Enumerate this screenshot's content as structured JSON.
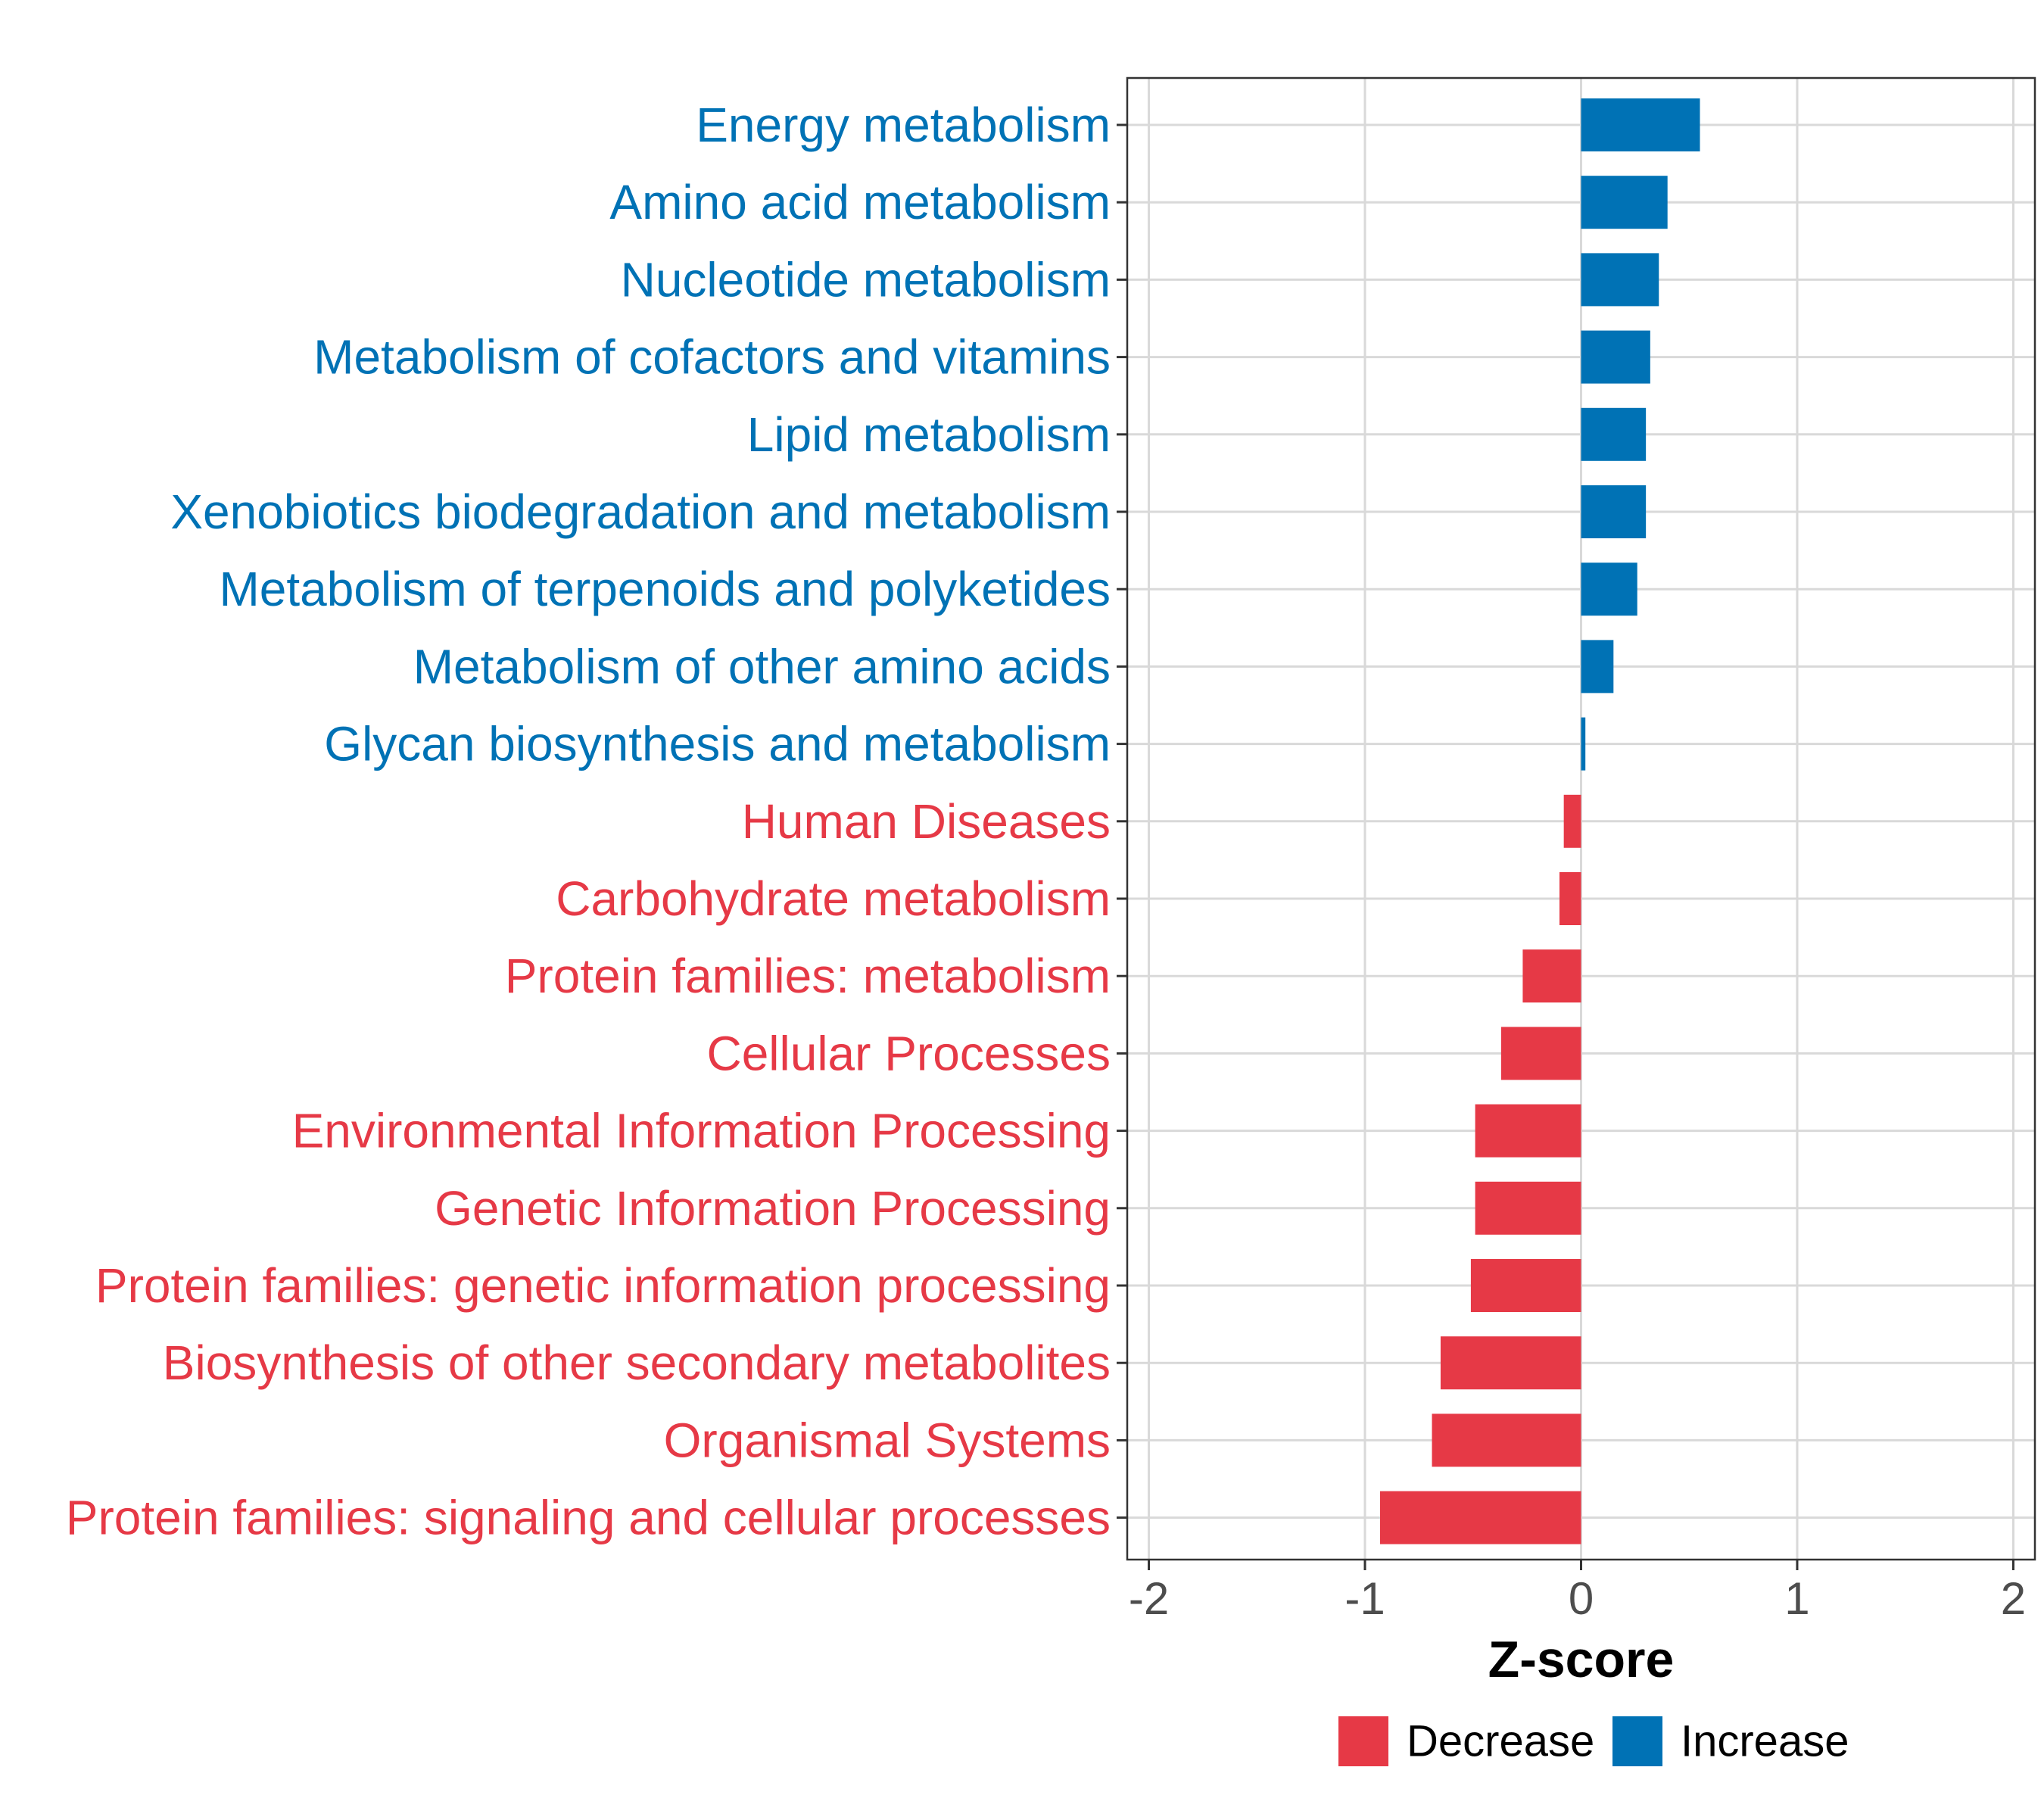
{
  "chart_data": {
    "type": "bar",
    "orientation": "horizontal",
    "title": "",
    "xlabel": "Z-score",
    "ylabel": "",
    "xlim": [
      -2.1,
      2.1
    ],
    "x_ticks": [
      -2,
      -1,
      0,
      1,
      2
    ],
    "x_tick_labels": [
      "-2",
      "-1",
      "0",
      "1",
      "2"
    ],
    "grid": true,
    "categories": [
      "Energy metabolism",
      "Amino acid metabolism",
      "Nucleotide metabolism",
      "Metabolism of cofactors and vitamins",
      "Lipid metabolism",
      "Xenobiotics biodegradation and metabolism",
      "Metabolism of terpenoids and polyketides",
      "Metabolism of other amino acids",
      "Glycan biosynthesis and metabolism",
      "Human Diseases",
      "Carbohydrate metabolism",
      "Protein families: metabolism",
      "Cellular Processes",
      "Environmental Information Processing",
      "Genetic Information Processing",
      "Protein families: genetic information processing",
      "Biosynthesis of other secondary metabolites",
      "Organismal Systems",
      "Protein families: signaling and cellular processes"
    ],
    "values": [
      0.55,
      0.4,
      0.36,
      0.32,
      0.3,
      0.3,
      0.26,
      0.15,
      0.02,
      -0.08,
      -0.1,
      -0.27,
      -0.37,
      -0.49,
      -0.49,
      -0.51,
      -0.65,
      -0.69,
      -0.93
    ],
    "groups": [
      "Increase",
      "Increase",
      "Increase",
      "Increase",
      "Increase",
      "Increase",
      "Increase",
      "Increase",
      "Increase",
      "Decrease",
      "Decrease",
      "Decrease",
      "Decrease",
      "Decrease",
      "Decrease",
      "Decrease",
      "Decrease",
      "Decrease",
      "Decrease"
    ],
    "legend": {
      "position": "bottom",
      "entries": [
        {
          "name": "Decrease",
          "color": "#e63946"
        },
        {
          "name": "Increase",
          "color": "#0072b5"
        }
      ]
    },
    "colors": {
      "Decrease": "#e63946",
      "Increase": "#0072b5"
    }
  }
}
